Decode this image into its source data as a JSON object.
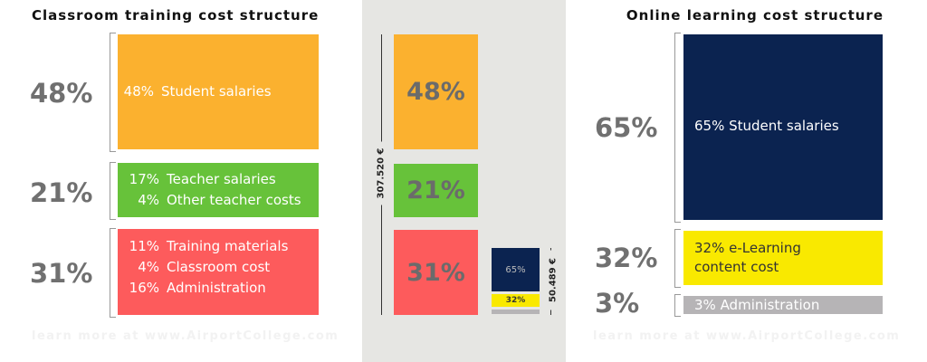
{
  "left": {
    "title": "Classroom training cost structure",
    "groups": [
      {
        "percent": "48%",
        "items": [
          {
            "pct": "48%",
            "label": "Student salaries"
          }
        ]
      },
      {
        "percent": "21%",
        "items": [
          {
            "pct": "17%",
            "label": "Teacher salaries"
          },
          {
            "pct": "4%",
            "label": "Other teacher costs"
          }
        ]
      },
      {
        "percent": "31%",
        "items": [
          {
            "pct": "11%",
            "label": "Training materials"
          },
          {
            "pct": "4%",
            "label": "Classroom cost"
          },
          {
            "pct": "16%",
            "label": "Administration"
          }
        ]
      }
    ]
  },
  "middle": {
    "classroom_total": "307.520 €",
    "classroom_blocks": [
      "48%",
      "21%",
      "31%"
    ],
    "online_total": "50.489 €",
    "online_blocks": [
      "65%",
      "32%"
    ]
  },
  "right": {
    "title": "Online learning cost structure",
    "groups": [
      {
        "percent": "65%",
        "text": "65%  Student salaries"
      },
      {
        "percent": "32%",
        "text": "32% e-Learning content cost"
      },
      {
        "percent": "3%",
        "text": "3%  Administration"
      }
    ]
  },
  "footer": [
    "learn more at www.AirportCollege.com",
    "learn more at www.AirportCollege.com"
  ]
}
